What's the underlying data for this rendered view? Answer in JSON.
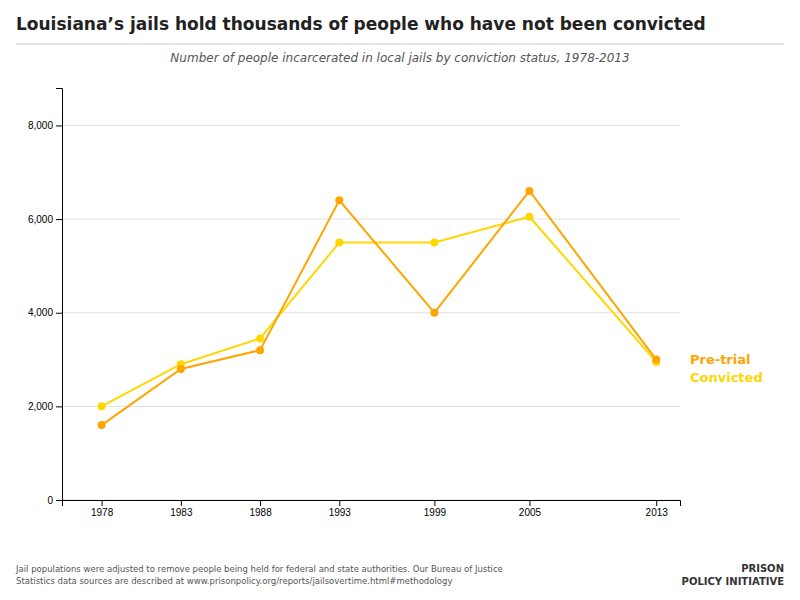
{
  "chart_data": {
    "type": "line",
    "title": "Louisiana’s jails hold thousands of people who have not been convicted",
    "subtitle": "Number of people incarcerated in local jails by conviction status, 1978-2013",
    "x": [
      1978,
      1983,
      1988,
      1993,
      1999,
      2005,
      2013
    ],
    "series": [
      {
        "name": "Convicted",
        "color": "#FFD700",
        "marker": "circle",
        "values": [
          2000,
          2900,
          3450,
          5500,
          5500,
          6050,
          2950
        ]
      },
      {
        "name": "Pre-trial",
        "color": "#FFA500",
        "marker": "circle",
        "values": [
          1600,
          2800,
          3200,
          6400,
          4000,
          6600,
          3000
        ]
      }
    ],
    "xlim": [
      1975.5,
      2014.5
    ],
    "xticks": [
      1978,
      1983,
      1988,
      1993,
      1999,
      2005,
      2013
    ],
    "ylim": [
      0,
      8800
    ],
    "yticks": [
      0,
      {
        "value": 2000,
        "label": "2,000"
      },
      {
        "value": 4000,
        "label": "4,000"
      },
      {
        "value": 6000,
        "label": "6,000"
      },
      {
        "value": 8000,
        "label": "8,000"
      }
    ],
    "grid": true,
    "annotations": [
      "Jail populations were adjusted to remove people being held for federal and state authorities. Our Bureau of Justice",
      "Statistics data sources are described at www.prisonpolicy.org/reports/jailsovertime.html#methodology",
      "PRISON",
      "POLICY INITIATIVE"
    ]
  }
}
